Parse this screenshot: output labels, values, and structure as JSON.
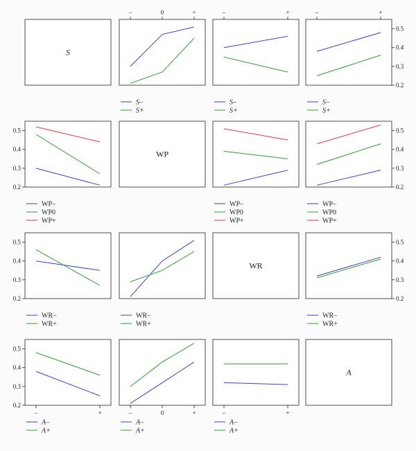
{
  "colors": {
    "blue": "#3a3fd0",
    "green": "#2f9e2f",
    "red": "#e03a3a",
    "frame": "#222222",
    "text": "#222222"
  },
  "ylim": [
    0.2,
    0.55
  ],
  "yticks": [
    "0.2",
    "0.3",
    "0.4",
    "0.5"
  ],
  "chart_data": [
    {
      "type": "label",
      "row": 0,
      "col": 0,
      "label": "S",
      "italic": true
    },
    {
      "type": "line",
      "row": 0,
      "col": 1,
      "x": [
        "–",
        "0",
        "+"
      ],
      "show_top_ticks": true,
      "series": [
        {
          "name": "S–",
          "color": "blue",
          "values": [
            0.3,
            0.47,
            0.51
          ]
        },
        {
          "name": "S+",
          "color": "green",
          "values": [
            0.21,
            0.27,
            0.45
          ]
        }
      ]
    },
    {
      "type": "line",
      "row": 0,
      "col": 2,
      "x": [
        "–",
        "+"
      ],
      "show_top_ticks": true,
      "series": [
        {
          "name": "S–",
          "color": "blue",
          "values": [
            0.4,
            0.46
          ]
        },
        {
          "name": "S+",
          "color": "green",
          "values": [
            0.35,
            0.27
          ]
        }
      ]
    },
    {
      "type": "line",
      "row": 0,
      "col": 3,
      "x": [
        "–",
        "+"
      ],
      "show_top_ticks": true,
      "show_right_axis": true,
      "series": [
        {
          "name": "S–",
          "color": "blue",
          "values": [
            0.38,
            0.48
          ]
        },
        {
          "name": "S+",
          "color": "green",
          "values": [
            0.25,
            0.36
          ]
        }
      ]
    },
    {
      "type": "line",
      "row": 1,
      "col": 0,
      "x": [
        "–",
        "+"
      ],
      "show_left_axis": true,
      "series": [
        {
          "name": "WP–",
          "color": "blue",
          "values": [
            0.3,
            0.21
          ]
        },
        {
          "name": "WP0",
          "color": "green",
          "values": [
            0.48,
            0.27
          ]
        },
        {
          "name": "WP+",
          "color": "red",
          "values": [
            0.52,
            0.44
          ]
        }
      ]
    },
    {
      "type": "label",
      "row": 1,
      "col": 1,
      "label": "WP",
      "italic": false
    },
    {
      "type": "line",
      "row": 1,
      "col": 2,
      "x": [
        "–",
        "+"
      ],
      "series": [
        {
          "name": "WP–",
          "color": "blue",
          "values": [
            0.21,
            0.29
          ]
        },
        {
          "name": "WP0",
          "color": "green",
          "values": [
            0.39,
            0.35
          ]
        },
        {
          "name": "WP+",
          "color": "red",
          "values": [
            0.51,
            0.45
          ]
        }
      ]
    },
    {
      "type": "line",
      "row": 1,
      "col": 3,
      "x": [
        "–",
        "+"
      ],
      "show_right_axis": true,
      "series": [
        {
          "name": "WP–",
          "color": "blue",
          "values": [
            0.21,
            0.29
          ]
        },
        {
          "name": "WP0",
          "color": "green",
          "values": [
            0.32,
            0.43
          ]
        },
        {
          "name": "WP+",
          "color": "red",
          "values": [
            0.43,
            0.53
          ]
        }
      ]
    },
    {
      "type": "line",
      "row": 2,
      "col": 0,
      "x": [
        "–",
        "+"
      ],
      "show_left_axis": true,
      "series": [
        {
          "name": "WR–",
          "color": "blue",
          "values": [
            0.4,
            0.35
          ]
        },
        {
          "name": "WR+",
          "color": "green",
          "values": [
            0.46,
            0.27
          ]
        }
      ]
    },
    {
      "type": "line",
      "row": 2,
      "col": 1,
      "x": [
        "–",
        "0",
        "+"
      ],
      "series": [
        {
          "name": "WR–",
          "color": "blue",
          "values": [
            0.21,
            0.4,
            0.51
          ]
        },
        {
          "name": "WR+",
          "color": "green",
          "values": [
            0.29,
            0.35,
            0.45
          ]
        }
      ]
    },
    {
      "type": "label",
      "row": 2,
      "col": 2,
      "label": "WR",
      "italic": false
    },
    {
      "type": "line",
      "row": 2,
      "col": 3,
      "x": [
        "–",
        "+"
      ],
      "show_right_axis": true,
      "series": [
        {
          "name": "WR–",
          "color": "blue",
          "values": [
            0.32,
            0.42
          ]
        },
        {
          "name": "WR+",
          "color": "green",
          "values": [
            0.31,
            0.41
          ]
        }
      ]
    },
    {
      "type": "line",
      "row": 3,
      "col": 0,
      "x": [
        "–",
        "+"
      ],
      "show_left_axis": true,
      "show_bottom_ticks": true,
      "series": [
        {
          "name": "A–",
          "color": "blue",
          "values": [
            0.38,
            0.25
          ]
        },
        {
          "name": "A+",
          "color": "green",
          "values": [
            0.48,
            0.36
          ]
        }
      ]
    },
    {
      "type": "line",
      "row": 3,
      "col": 1,
      "x": [
        "–",
        "0",
        "+"
      ],
      "show_bottom_ticks": true,
      "series": [
        {
          "name": "A–",
          "color": "blue",
          "values": [
            0.21,
            0.32,
            0.43
          ]
        },
        {
          "name": "A+",
          "color": "green",
          "values": [
            0.3,
            0.43,
            0.53
          ]
        }
      ]
    },
    {
      "type": "line",
      "row": 3,
      "col": 2,
      "x": [
        "–",
        "+"
      ],
      "show_bottom_ticks": true,
      "series": [
        {
          "name": "A–",
          "color": "blue",
          "values": [
            0.32,
            0.31
          ]
        },
        {
          "name": "A+",
          "color": "green",
          "values": [
            0.42,
            0.42
          ]
        }
      ]
    },
    {
      "type": "label",
      "row": 3,
      "col": 3,
      "label": "A",
      "italic": true
    }
  ],
  "legends": [
    {
      "row": 0,
      "col": 1,
      "italic": true,
      "entries": [
        {
          "label": "S–",
          "color": "blue"
        },
        {
          "label": "S+",
          "color": "green"
        }
      ]
    },
    {
      "row": 0,
      "col": 2,
      "italic": true,
      "entries": [
        {
          "label": "S–",
          "color": "blue"
        },
        {
          "label": "S+",
          "color": "green"
        }
      ]
    },
    {
      "row": 0,
      "col": 3,
      "italic": true,
      "entries": [
        {
          "label": "S–",
          "color": "blue"
        },
        {
          "label": "S+",
          "color": "green"
        }
      ]
    },
    {
      "row": 1,
      "col": 0,
      "italic": false,
      "entries": [
        {
          "label": "WP–",
          "color": "blue"
        },
        {
          "label": "WP0",
          "color": "green"
        },
        {
          "label": "WP+",
          "color": "red"
        }
      ]
    },
    {
      "row": 1,
      "col": 2,
      "italic": false,
      "entries": [
        {
          "label": "WP–",
          "color": "blue"
        },
        {
          "label": "WP0",
          "color": "green"
        },
        {
          "label": "WP+",
          "color": "red"
        }
      ]
    },
    {
      "row": 1,
      "col": 3,
      "italic": false,
      "entries": [
        {
          "label": "WP–",
          "color": "blue"
        },
        {
          "label": "WP0",
          "color": "green"
        },
        {
          "label": "WP+",
          "color": "red"
        }
      ]
    },
    {
      "row": 2,
      "col": 0,
      "italic": false,
      "entries": [
        {
          "label": "WR–",
          "color": "blue"
        },
        {
          "label": "WR+",
          "color": "green"
        }
      ]
    },
    {
      "row": 2,
      "col": 1,
      "italic": false,
      "entries": [
        {
          "label": "WR–",
          "color": "blue"
        },
        {
          "label": "WR+",
          "color": "green"
        }
      ]
    },
    {
      "row": 2,
      "col": 3,
      "italic": false,
      "entries": [
        {
          "label": "WR–",
          "color": "blue"
        },
        {
          "label": "WR+",
          "color": "green"
        }
      ]
    },
    {
      "row": 3,
      "col": 0,
      "italic": true,
      "entries": [
        {
          "label": "A–",
          "color": "blue"
        },
        {
          "label": "A+",
          "color": "green"
        }
      ]
    },
    {
      "row": 3,
      "col": 1,
      "italic": true,
      "entries": [
        {
          "label": "A–",
          "color": "blue"
        },
        {
          "label": "A+",
          "color": "green"
        }
      ]
    },
    {
      "row": 3,
      "col": 2,
      "italic": true,
      "entries": [
        {
          "label": "A–",
          "color": "blue"
        },
        {
          "label": "A+",
          "color": "green"
        }
      ]
    }
  ]
}
